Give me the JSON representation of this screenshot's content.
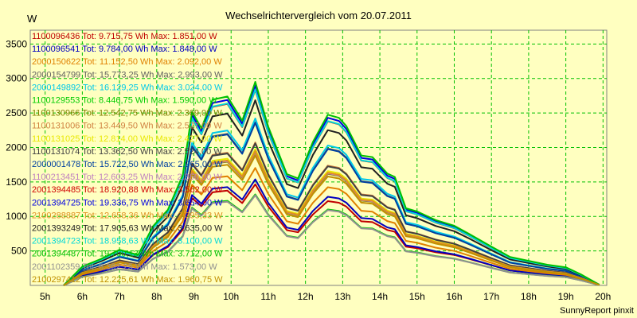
{
  "chart_data": {
    "type": "line",
    "title": "Wechselrichtervergleich vom 20.07.2011",
    "ylabel": "W",
    "xlabel": "",
    "footer": "SunnyReport pinxit",
    "ylim": [
      0,
      3700
    ],
    "xlim": [
      4.6,
      20.1
    ],
    "yticks": [
      500,
      1000,
      1500,
      2000,
      2500,
      3000,
      3500
    ],
    "xticks": [
      {
        "v": 5,
        "label": "5h"
      },
      {
        "v": 6,
        "label": "6h"
      },
      {
        "v": 7,
        "label": "7h"
      },
      {
        "v": 8,
        "label": "8h"
      },
      {
        "v": 9,
        "label": "9h"
      },
      {
        "v": 10,
        "label": "10h"
      },
      {
        "v": 11,
        "label": "11h"
      },
      {
        "v": 12,
        "label": "12h"
      },
      {
        "v": 13,
        "label": "13h"
      },
      {
        "v": 14,
        "label": "14h"
      },
      {
        "v": 15,
        "label": "15h"
      },
      {
        "v": 16,
        "label": "16h"
      },
      {
        "v": 17,
        "label": "17h"
      },
      {
        "v": 18,
        "label": "18h"
      },
      {
        "v": 19,
        "label": "19h"
      },
      {
        "v": 20,
        "label": "20h"
      }
    ],
    "grid": true,
    "legend_position": "top-left inside",
    "x": [
      5.5,
      6.0,
      6.5,
      7.0,
      7.5,
      7.9,
      8.3,
      8.7,
      8.95,
      9.2,
      9.5,
      9.9,
      10.3,
      10.65,
      11.0,
      11.5,
      11.8,
      12.2,
      12.6,
      12.9,
      13.1,
      13.5,
      13.8,
      14.2,
      14.4,
      14.7,
      15.0,
      15.5,
      16.0,
      16.4,
      17.0,
      17.5,
      18.0,
      18.5,
      19.0,
      19.4,
      19.9
    ],
    "series": [
      {
        "name": "1100096436 Tot: 9.715,75 Wh Max: 1.851,00 W",
        "color": "#c00000",
        "values": [
          0,
          141,
          199,
          268,
          229,
          439,
          556,
          809,
          1267,
          1148,
          1350,
          1374,
          1193,
          1466,
          1146,
          801,
          770,
          1029,
          1222,
          1199,
          1142,
          929,
          917,
          803,
          778,
          561,
          538,
          481,
          442,
          384,
          292,
          215,
          186,
          157,
          138,
          85,
          6
        ]
      },
      {
        "name": "1100096541 Tot: 9.784,00 Wh Max: 1.848,00 W",
        "color": "#0000c0",
        "values": [
          0,
          144,
          202,
          271,
          230,
          446,
          571,
          832,
          1311,
          1185,
          1402,
          1425,
          1245,
          1538,
          1196,
          838,
          806,
          1080,
          1285,
          1261,
          1199,
          976,
          964,
          841,
          815,
          581,
          557,
          495,
          451,
          391,
          295,
          217,
          187,
          158,
          138,
          85,
          6
        ]
      },
      {
        "name": "2000150622 Tot: 11.152,50 Wh Max: 2.092,00 W",
        "color": "#e08000",
        "values": [
          0,
          160,
          224,
          302,
          258,
          498,
          636,
          926,
          1458,
          1318,
          1558,
          1583,
          1380,
          1702,
          1327,
          929,
          893,
          1198,
          1424,
          1397,
          1328,
          1082,
          1068,
          933,
          904,
          645,
          618,
          548,
          500,
          433,
          326,
          240,
          207,
          175,
          153,
          94,
          6
        ]
      },
      {
        "name": "2000154799 Tot: 15.773,25 Wh Max: 2.993,00 W",
        "color": "#606060",
        "values": [
          0,
          219,
          307,
          414,
          354,
          686,
          879,
          1282,
          2021,
          1829,
          2162,
          2198,
          1917,
          2367,
          1845,
          1293,
          1244,
          1669,
          1985,
          1948,
          1852,
          1510,
          1491,
          1300,
          1260,
          896,
          859,
          760,
          692,
          599,
          450,
          331,
          285,
          241,
          211,
          130,
          8
        ]
      },
      {
        "name": "2000149892 Tot: 16.129,25 Wh Max: 3.024,00 W",
        "color": "#00c8e8",
        "values": [
          0,
          224,
          314,
          424,
          361,
          702,
          899,
          1310,
          2065,
          1869,
          2209,
          2247,
          1960,
          2421,
          1887,
          1322,
          1272,
          1706,
          2029,
          1991,
          1893,
          1543,
          1524,
          1329,
          1288,
          916,
          879,
          777,
          708,
          612,
          460,
          338,
          291,
          246,
          216,
          133,
          8
        ]
      },
      {
        "name": "1100129553 Tot: 8.446,75 Wh Max: 1.590,00 W",
        "color": "#00cc00",
        "values": [
          0,
          124,
          174,
          234,
          200,
          386,
          490,
          714,
          1128,
          1021,
          1206,
          1226,
          1069,
          1320,
          1028,
          719,
          692,
          925,
          1101,
          1079,
          1027,
          835,
          825,
          720,
          697,
          498,
          478,
          425,
          390,
          338,
          256,
          188,
          163,
          138,
          121,
          75,
          5
        ]
      },
      {
        "name": "1100130966 Tot: 12.542,75 Wh Max: 2.369,00 W",
        "color": "#808000",
        "values": [
          0,
          180,
          252,
          339,
          290,
          561,
          718,
          1046,
          1648,
          1491,
          1763,
          1792,
          1562,
          1929,
          1504,
          1053,
          1014,
          1359,
          1617,
          1587,
          1509,
          1229,
          1214,
          1059,
          1026,
          730,
          700,
          620,
          565,
          489,
          368,
          271,
          234,
          198,
          173,
          106,
          7
        ]
      },
      {
        "name": "1100131006 Tot: 13.449,50 Wh Max: 2.527,00 W",
        "color": "#d08040",
        "values": [
          0,
          193,
          270,
          364,
          311,
          602,
          771,
          1123,
          1770,
          1601,
          1892,
          1924,
          1678,
          2072,
          1615,
          1131,
          1089,
          1459,
          1737,
          1705,
          1620,
          1320,
          1303,
          1137,
          1102,
          784,
          752,
          666,
          606,
          525,
          395,
          291,
          251,
          212,
          186,
          114,
          7
        ]
      },
      {
        "name": "1100131025 Tot: 12.814,00 Wh Max: 2.427,00 W",
        "color": "#e8e800",
        "values": [
          0,
          184,
          258,
          347,
          297,
          575,
          736,
          1072,
          1690,
          1529,
          1807,
          1837,
          1602,
          1978,
          1542,
          1079,
          1039,
          1393,
          1658,
          1627,
          1547,
          1260,
          1244,
          1086,
          1052,
          749,
          718,
          636,
          579,
          501,
          377,
          278,
          240,
          203,
          177,
          109,
          7
        ]
      },
      {
        "name": "1100131074 Tot: 13.362,50 Wh Max: 2.524,00 W",
        "color": "#404040",
        "values": [
          0,
          192,
          269,
          362,
          309,
          598,
          766,
          1116,
          1759,
          1591,
          1880,
          1912,
          1667,
          2059,
          1605,
          1124,
          1082,
          1449,
          1726,
          1694,
          1610,
          1311,
          1295,
          1130,
          1095,
          780,
          748,
          662,
          603,
          522,
          393,
          289,
          249,
          211,
          184,
          113,
          7
        ]
      },
      {
        "name": "2000001478 Tot: 15.722,50 Wh Max: 2.965,00 W",
        "color": "#0040a0",
        "values": [
          0,
          218,
          306,
          413,
          353,
          684,
          876,
          1277,
          2013,
          1822,
          2153,
          2189,
          1909,
          2358,
          1838,
          1288,
          1239,
          1662,
          1977,
          1940,
          1845,
          1504,
          1485,
          1295,
          1255,
          893,
          856,
          757,
          690,
          597,
          449,
          330,
          284,
          240,
          210,
          129,
          8
        ]
      },
      {
        "name": "1100213451 Tot: 12.603,25 Wh Max: 2.360,00 W",
        "color": "#c080c0",
        "values": [
          0,
          181,
          253,
          341,
          291,
          564,
          722,
          1052,
          1657,
          1500,
          1773,
          1802,
          1571,
          1940,
          1512,
          1059,
          1020,
          1367,
          1626,
          1596,
          1517,
          1236,
          1221,
          1065,
          1032,
          734,
          704,
          623,
          568,
          492,
          370,
          272,
          235,
          199,
          174,
          107,
          7
        ]
      },
      {
        "name": "2001394485 Tot: 18.920,88 Wh Max: 3.562,00 W",
        "color": "#d00000",
        "values": [
          0,
          263,
          368,
          497,
          424,
          822,
          1053,
          1535,
          2420,
          2190,
          2588,
          2632,
          2295,
          2836,
          2211,
          1550,
          1491,
          2000,
          2378,
          2335,
          2220,
          1810,
          1787,
          1558,
          1511,
          1074,
          1030,
          911,
          830,
          718,
          540,
          397,
          342,
          288,
          253,
          155,
          9
        ]
      },
      {
        "name": "2001394725 Tot: 19.336,75 Wh Max: 3.654,00 W",
        "color": "#0000e0",
        "values": [
          0,
          268,
          376,
          507,
          433,
          840,
          1076,
          1568,
          2472,
          2237,
          2644,
          2689,
          2344,
          2897,
          2258,
          1583,
          1523,
          2043,
          2430,
          2385,
          2268,
          1849,
          1826,
          1592,
          1544,
          1097,
          1052,
          930,
          848,
          733,
          552,
          405,
          349,
          294,
          258,
          158,
          9
        ]
      },
      {
        "name": "2100288887 Tot: 12.658,36 Wh Max: 2.395,33 W",
        "color": "#e09020",
        "values": [
          0,
          182,
          255,
          343,
          293,
          567,
          726,
          1057,
          1666,
          1507,
          1781,
          1811,
          1579,
          1950,
          1520,
          1064,
          1025,
          1374,
          1634,
          1604,
          1525,
          1242,
          1227,
          1070,
          1037,
          738,
          708,
          627,
          571,
          494,
          372,
          274,
          236,
          200,
          175,
          107,
          7
        ]
      },
      {
        "name": "2001393249 Tot: 17.905,63 Wh Max: 3.635,00 W",
        "color": "#202020",
        "values": [
          0,
          249,
          349,
          470,
          401,
          778,
          996,
          1452,
          2291,
          2073,
          2450,
          2491,
          2172,
          2684,
          2092,
          1467,
          1411,
          1893,
          2251,
          2210,
          2101,
          1713,
          1691,
          1474,
          1430,
          1017,
          975,
          862,
          786,
          680,
          511,
          376,
          324,
          273,
          239,
          147,
          9
        ]
      },
      {
        "name": "2001394723 Tot: 18.958,63 Wh Max: 3.100,00 W",
        "color": "#00d8d8",
        "values": [
          0,
          263,
          369,
          498,
          425,
          824,
          1055,
          1538,
          2425,
          2194,
          2593,
          2637,
          2299,
          2841,
          2215,
          1553,
          1494,
          2004,
          2383,
          2339,
          2224,
          1813,
          1790,
          1561,
          1514,
          1076,
          1032,
          913,
          832,
          719,
          541,
          398,
          343,
          289,
          253,
          155,
          9
        ]
      },
      {
        "name": "2001394487 Tot: 19.700,13 Wh Max: 3.712,00 W",
        "color": "#00c000",
        "values": [
          0,
          273,
          383,
          516,
          441,
          856,
          1096,
          1597,
          2518,
          2279,
          2693,
          2739,
          2388,
          2951,
          2301,
          1613,
          1552,
          2081,
          2475,
          2430,
          2310,
          1883,
          1860,
          1622,
          1573,
          1118,
          1072,
          948,
          864,
          747,
          562,
          413,
          356,
          300,
          263,
          161,
          9
        ]
      },
      {
        "name": "2001102359 Tot: 8.362,25 Wh Max: 1.573,00 W",
        "color": "#909090",
        "values": [
          0,
          123,
          172,
          232,
          198,
          383,
          485,
          706,
          1116,
          1010,
          1194,
          1214,
          1058,
          1307,
          1018,
          712,
          685,
          916,
          1090,
          1068,
          1017,
          827,
          817,
          713,
          690,
          493,
          473,
          421,
          386,
          335,
          253,
          186,
          161,
          137,
          120,
          74,
          5
        ]
      },
      {
        "name": "2100297412 Tot: 12.225,61 Wh Max: 1.960,75 W",
        "color": "#c09000",
        "values": [
          0,
          176,
          246,
          331,
          283,
          548,
          701,
          1021,
          1609,
          1456,
          1721,
          1750,
          1526,
          1884,
          1469,
          1028,
          990,
          1328,
          1579,
          1550,
          1473,
          1200,
          1185,
          1034,
          1002,
          713,
          684,
          606,
          552,
          478,
          360,
          265,
          228,
          193,
          169,
          104,
          7
        ]
      }
    ]
  }
}
